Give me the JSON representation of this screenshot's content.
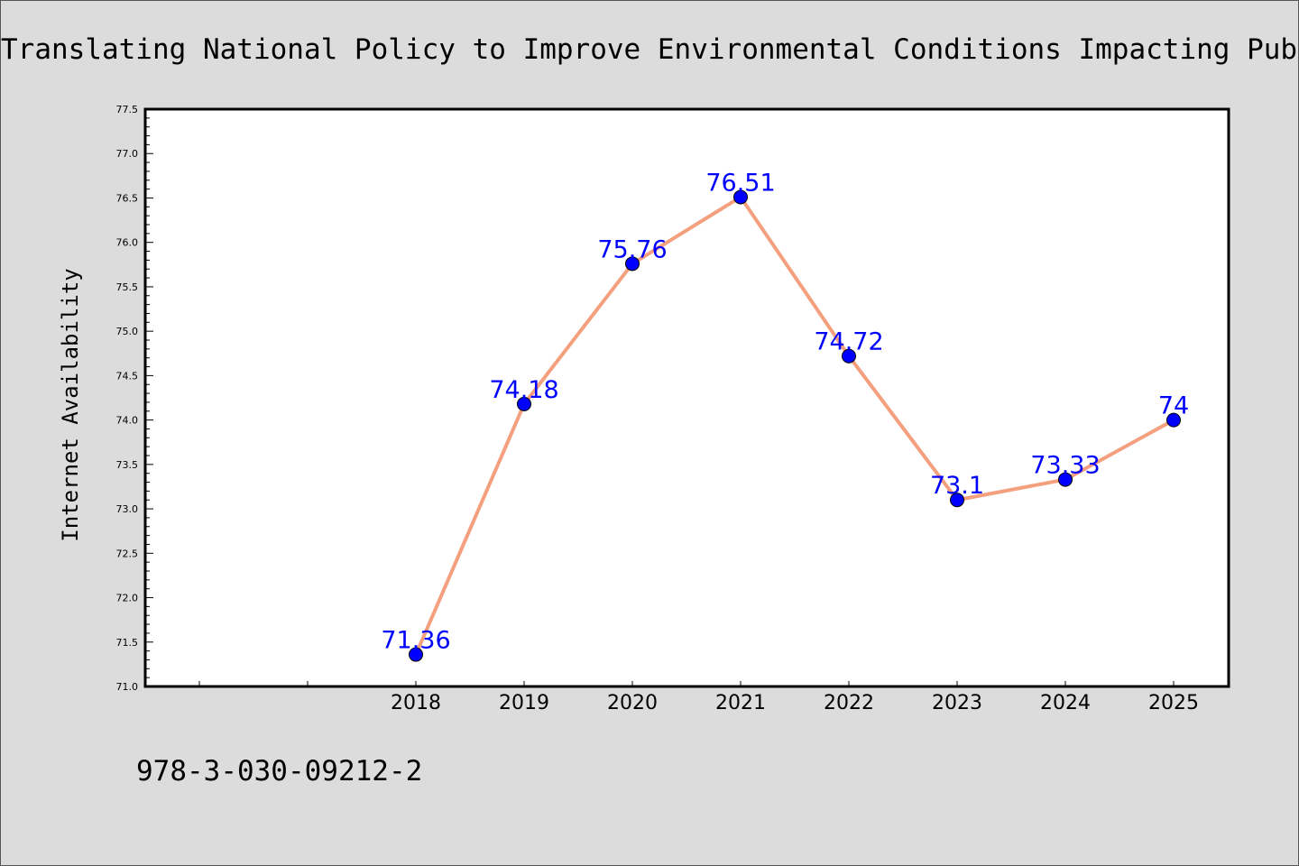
{
  "chart_data": {
    "type": "line",
    "title": "Translating National Policy to Improve Environmental Conditions Impacting Public",
    "ylabel": "Internet Availability",
    "xlabel": "",
    "x": [
      "2018",
      "2019",
      "2020",
      "2021",
      "2022",
      "2023",
      "2024",
      "2025"
    ],
    "series": [
      {
        "values": [
          71.36,
          74.18,
          75.76,
          76.51,
          74.72,
          73.1,
          73.33,
          74
        ]
      }
    ],
    "data_labels": [
      "71.36",
      "74.18",
      "75.76",
      "76.51",
      "74.72",
      "73.1",
      "73.33",
      "74"
    ],
    "ylim": [
      71.0,
      77.5
    ],
    "yticks": [
      "71.0",
      "71.5",
      "72.0",
      "72.5",
      "73.0",
      "73.5",
      "74.0",
      "74.5",
      "75.0",
      "75.5",
      "76.0",
      "76.5",
      "77.0",
      "77.5"
    ],
    "grid": false,
    "legend": "none",
    "line_color": "#f4a07f",
    "marker_color": "#0000ff",
    "label_color": "#0000ff"
  },
  "footer": {
    "isbn": "978-3-030-09212-2"
  }
}
